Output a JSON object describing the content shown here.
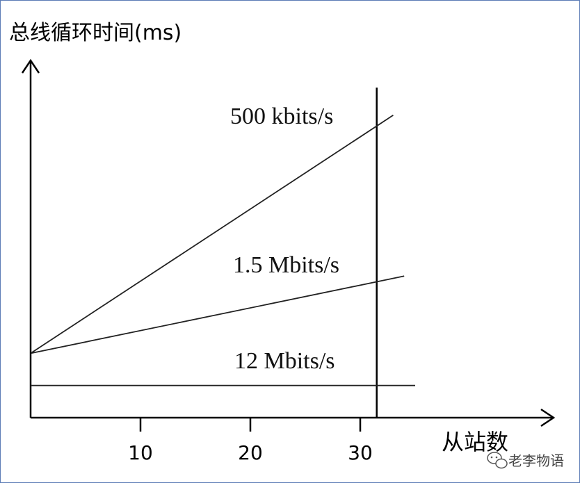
{
  "chart_data": {
    "type": "line",
    "title": "",
    "ylabel": "总线循环时间(ms)",
    "xlabel": "从站数",
    "x_ticks": [
      10,
      20,
      30
    ],
    "xlim": [
      0,
      37
    ],
    "ylim": [
      0,
      10
    ],
    "grid": false,
    "limit_line_x": 31.5,
    "series": [
      {
        "name": "500 kbits/s",
        "x": [
          0,
          33
        ],
        "y": [
          2.0,
          9.4
        ]
      },
      {
        "name": "1.5 Mbits/s",
        "x": [
          0,
          34
        ],
        "y": [
          2.0,
          4.4
        ]
      },
      {
        "name": "12 Mbits/s",
        "x": [
          0,
          35
        ],
        "y": [
          1.0,
          1.0
        ]
      }
    ]
  },
  "watermark": {
    "text": "老李物语",
    "icon": "wechat-icon"
  }
}
